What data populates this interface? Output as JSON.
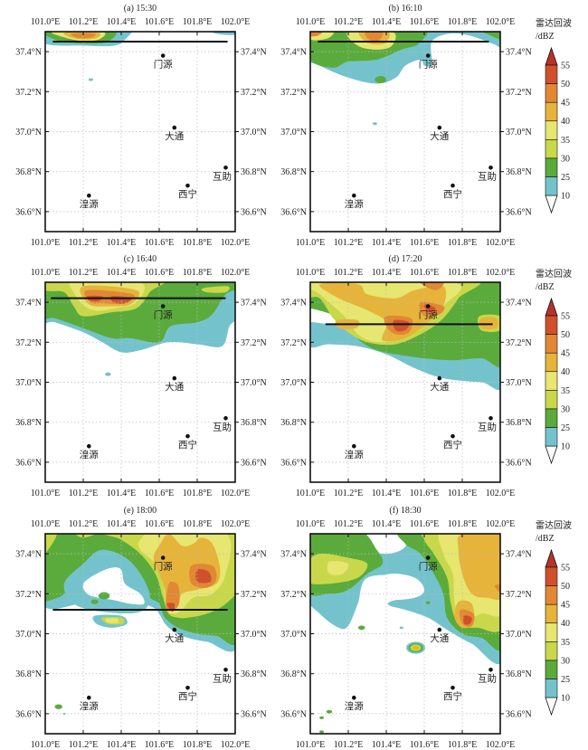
{
  "chart_data": {
    "type": "map",
    "panels": [
      {
        "title": "(a) 15:30",
        "section_line": {
          "lat": 37.45,
          "lon_start": 101.04,
          "lon_end": 101.96
        }
      },
      {
        "title": "(b) 16:10",
        "section_line": {
          "lat": 37.45,
          "lon_start": 101.04,
          "lon_end": 101.94
        }
      },
      {
        "title": "(c) 16:40",
        "section_line": {
          "lat": 37.42,
          "lon_start": 101.03,
          "lon_end": 101.95
        }
      },
      {
        "title": "(d) 17:20",
        "section_line": {
          "lat": 37.29,
          "lon_start": 101.08,
          "lon_end": 101.96
        }
      },
      {
        "title": "(e) 18:00",
        "section_line": {
          "lat": 37.12,
          "lon_start": 101.04,
          "lon_end": 101.96
        }
      },
      {
        "title": "(f) 18:30",
        "section_line": null
      }
    ],
    "xlim": [
      101.0,
      102.0
    ],
    "ylim": [
      36.5,
      37.5
    ],
    "lon_ticks": [
      101.0,
      101.2,
      101.4,
      101.6,
      101.8,
      102.0
    ],
    "lon_tick_labels": [
      "101.0°E",
      "101.2°E",
      "101.4°E",
      "101.6°E",
      "101.8°E",
      "102.0°E"
    ],
    "lat_ticks": [
      37.4,
      37.2,
      37.0,
      36.8,
      36.6
    ],
    "lat_tick_labels": [
      "37.4°N",
      "37.2°N",
      "37.0°N",
      "36.8°N",
      "36.6°N"
    ],
    "grid": true,
    "stations": [
      {
        "name": "门源",
        "lon": 101.62,
        "lat": 37.38
      },
      {
        "name": "大通",
        "lon": 101.68,
        "lat": 37.02
      },
      {
        "name": "互助",
        "lon": 101.95,
        "lat": 36.82
      },
      {
        "name": "西宁",
        "lon": 101.75,
        "lat": 36.73
      },
      {
        "name": "湟源",
        "lon": 101.23,
        "lat": 36.68
      }
    ],
    "colorbar": {
      "title": "雷达回波",
      "unit": "/dBZ",
      "levels": [
        10,
        25,
        30,
        35,
        40,
        45,
        50,
        55
      ],
      "level_labels": [
        "10",
        "25",
        "30",
        "35",
        "40",
        "45",
        "50",
        "55"
      ],
      "colors": [
        "#74c3cc",
        "#5aab3c",
        "#c8d84a",
        "#e6e670",
        "#e6b43a",
        "#e08834",
        "#d0502c"
      ],
      "over_color": "#b83228",
      "under_color": "#ffffff",
      "extend": "both"
    }
  }
}
